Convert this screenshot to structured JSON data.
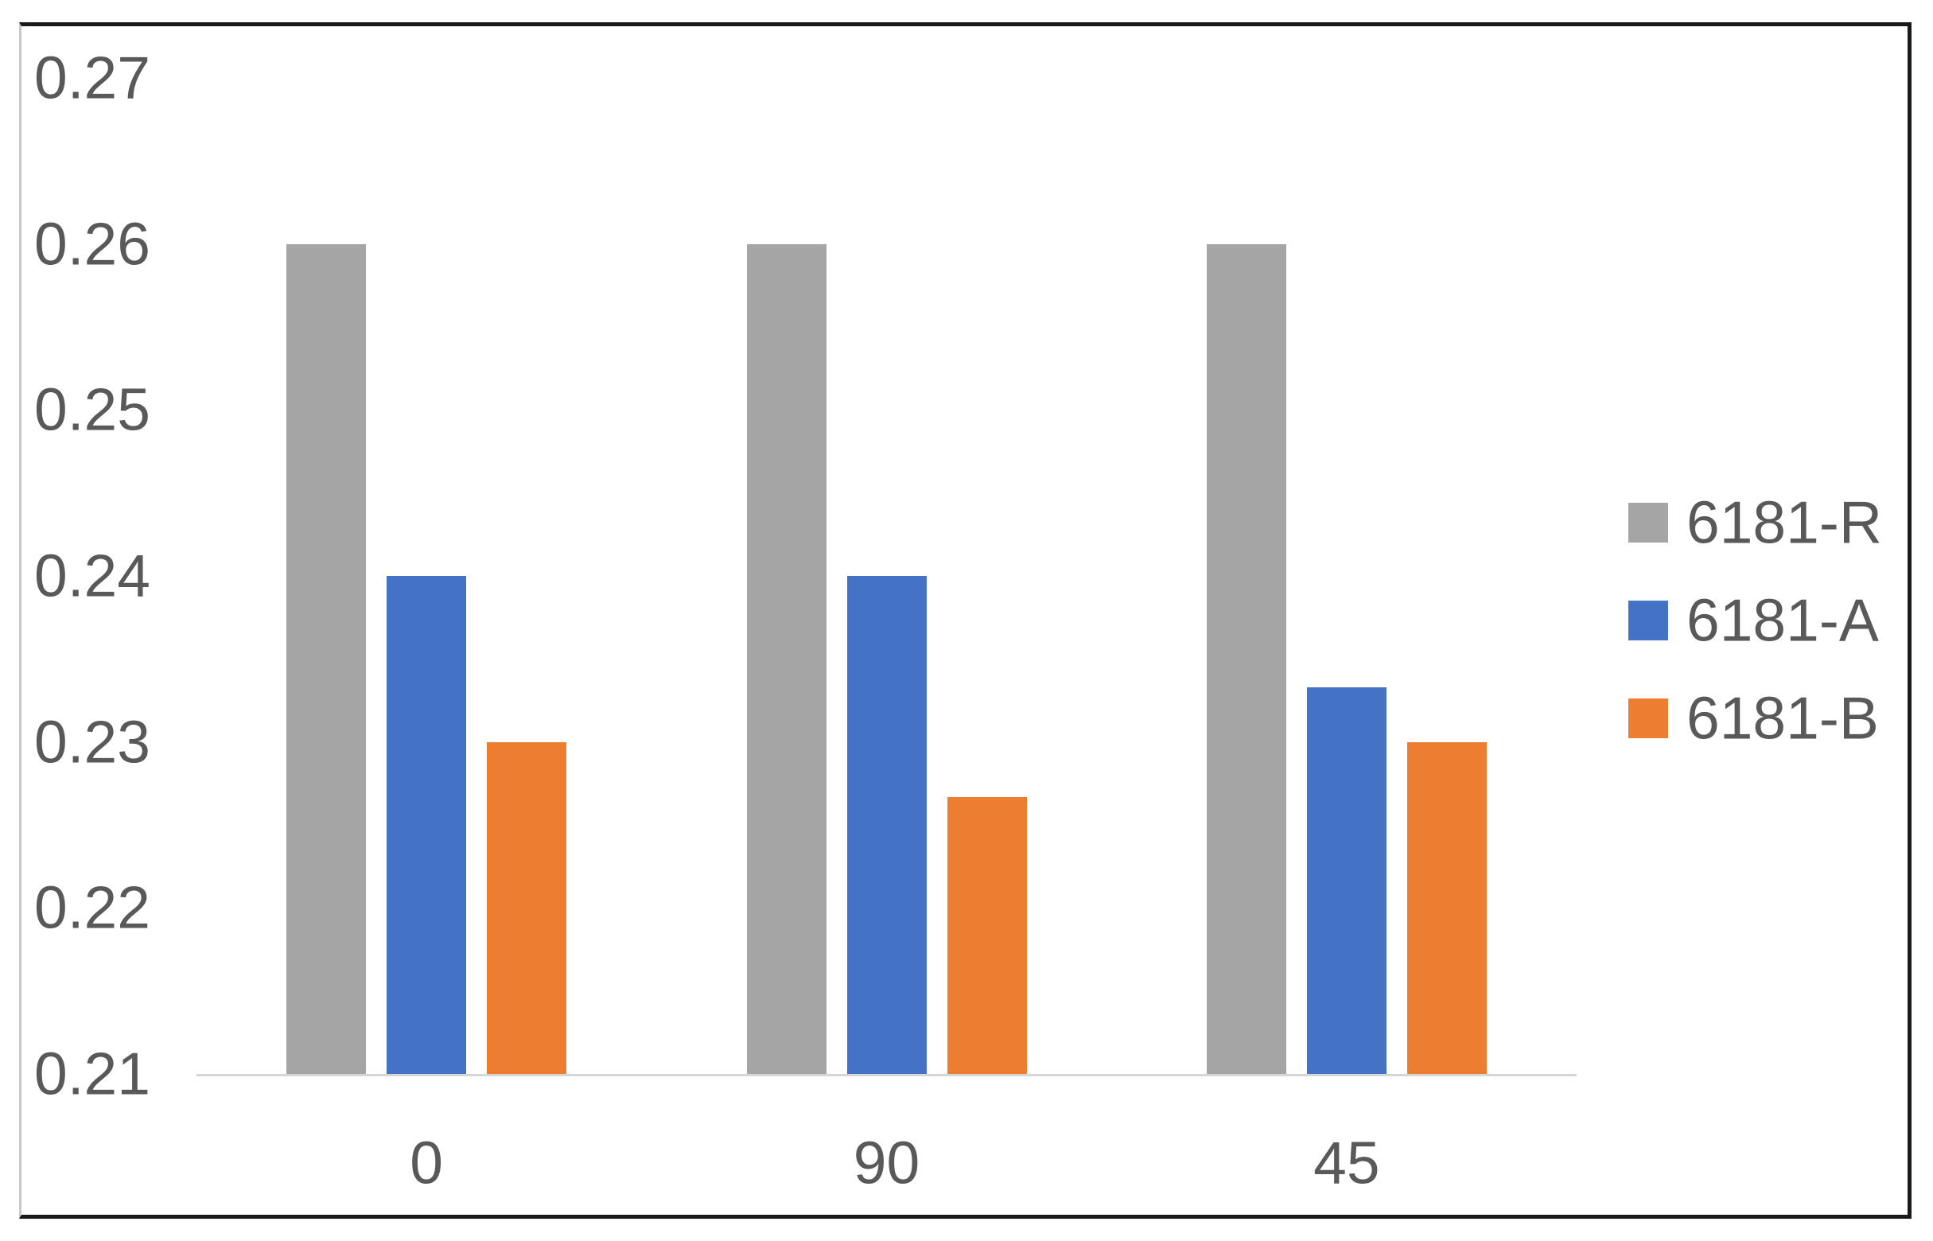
{
  "chart_data": {
    "type": "bar",
    "title": "",
    "categories": [
      "0",
      "90",
      "45"
    ],
    "series": [
      {
        "name": "6181-R",
        "color": "#a5a5a5",
        "values": [
          0.26,
          0.26,
          0.26
        ]
      },
      {
        "name": "6181-A",
        "color": "#4472c4",
        "values": [
          0.24,
          0.24,
          0.2333
        ]
      },
      {
        "name": "6181-B",
        "color": "#ed7d31",
        "values": [
          0.23,
          0.2267,
          0.23
        ]
      }
    ],
    "xlabel": "",
    "ylabel": "",
    "ylim": [
      0.21,
      0.27
    ],
    "y_tick_step": 0.01,
    "y_tick_labels": [
      "0.21",
      "0.22",
      "0.23",
      "0.24",
      "0.25",
      "0.26",
      "0.27"
    ],
    "grid": false,
    "legend_position": "right",
    "axis_text_color": "#595959",
    "axis_line_color": "#d6d6d6",
    "outer_border_color": "#1a1a1a"
  }
}
